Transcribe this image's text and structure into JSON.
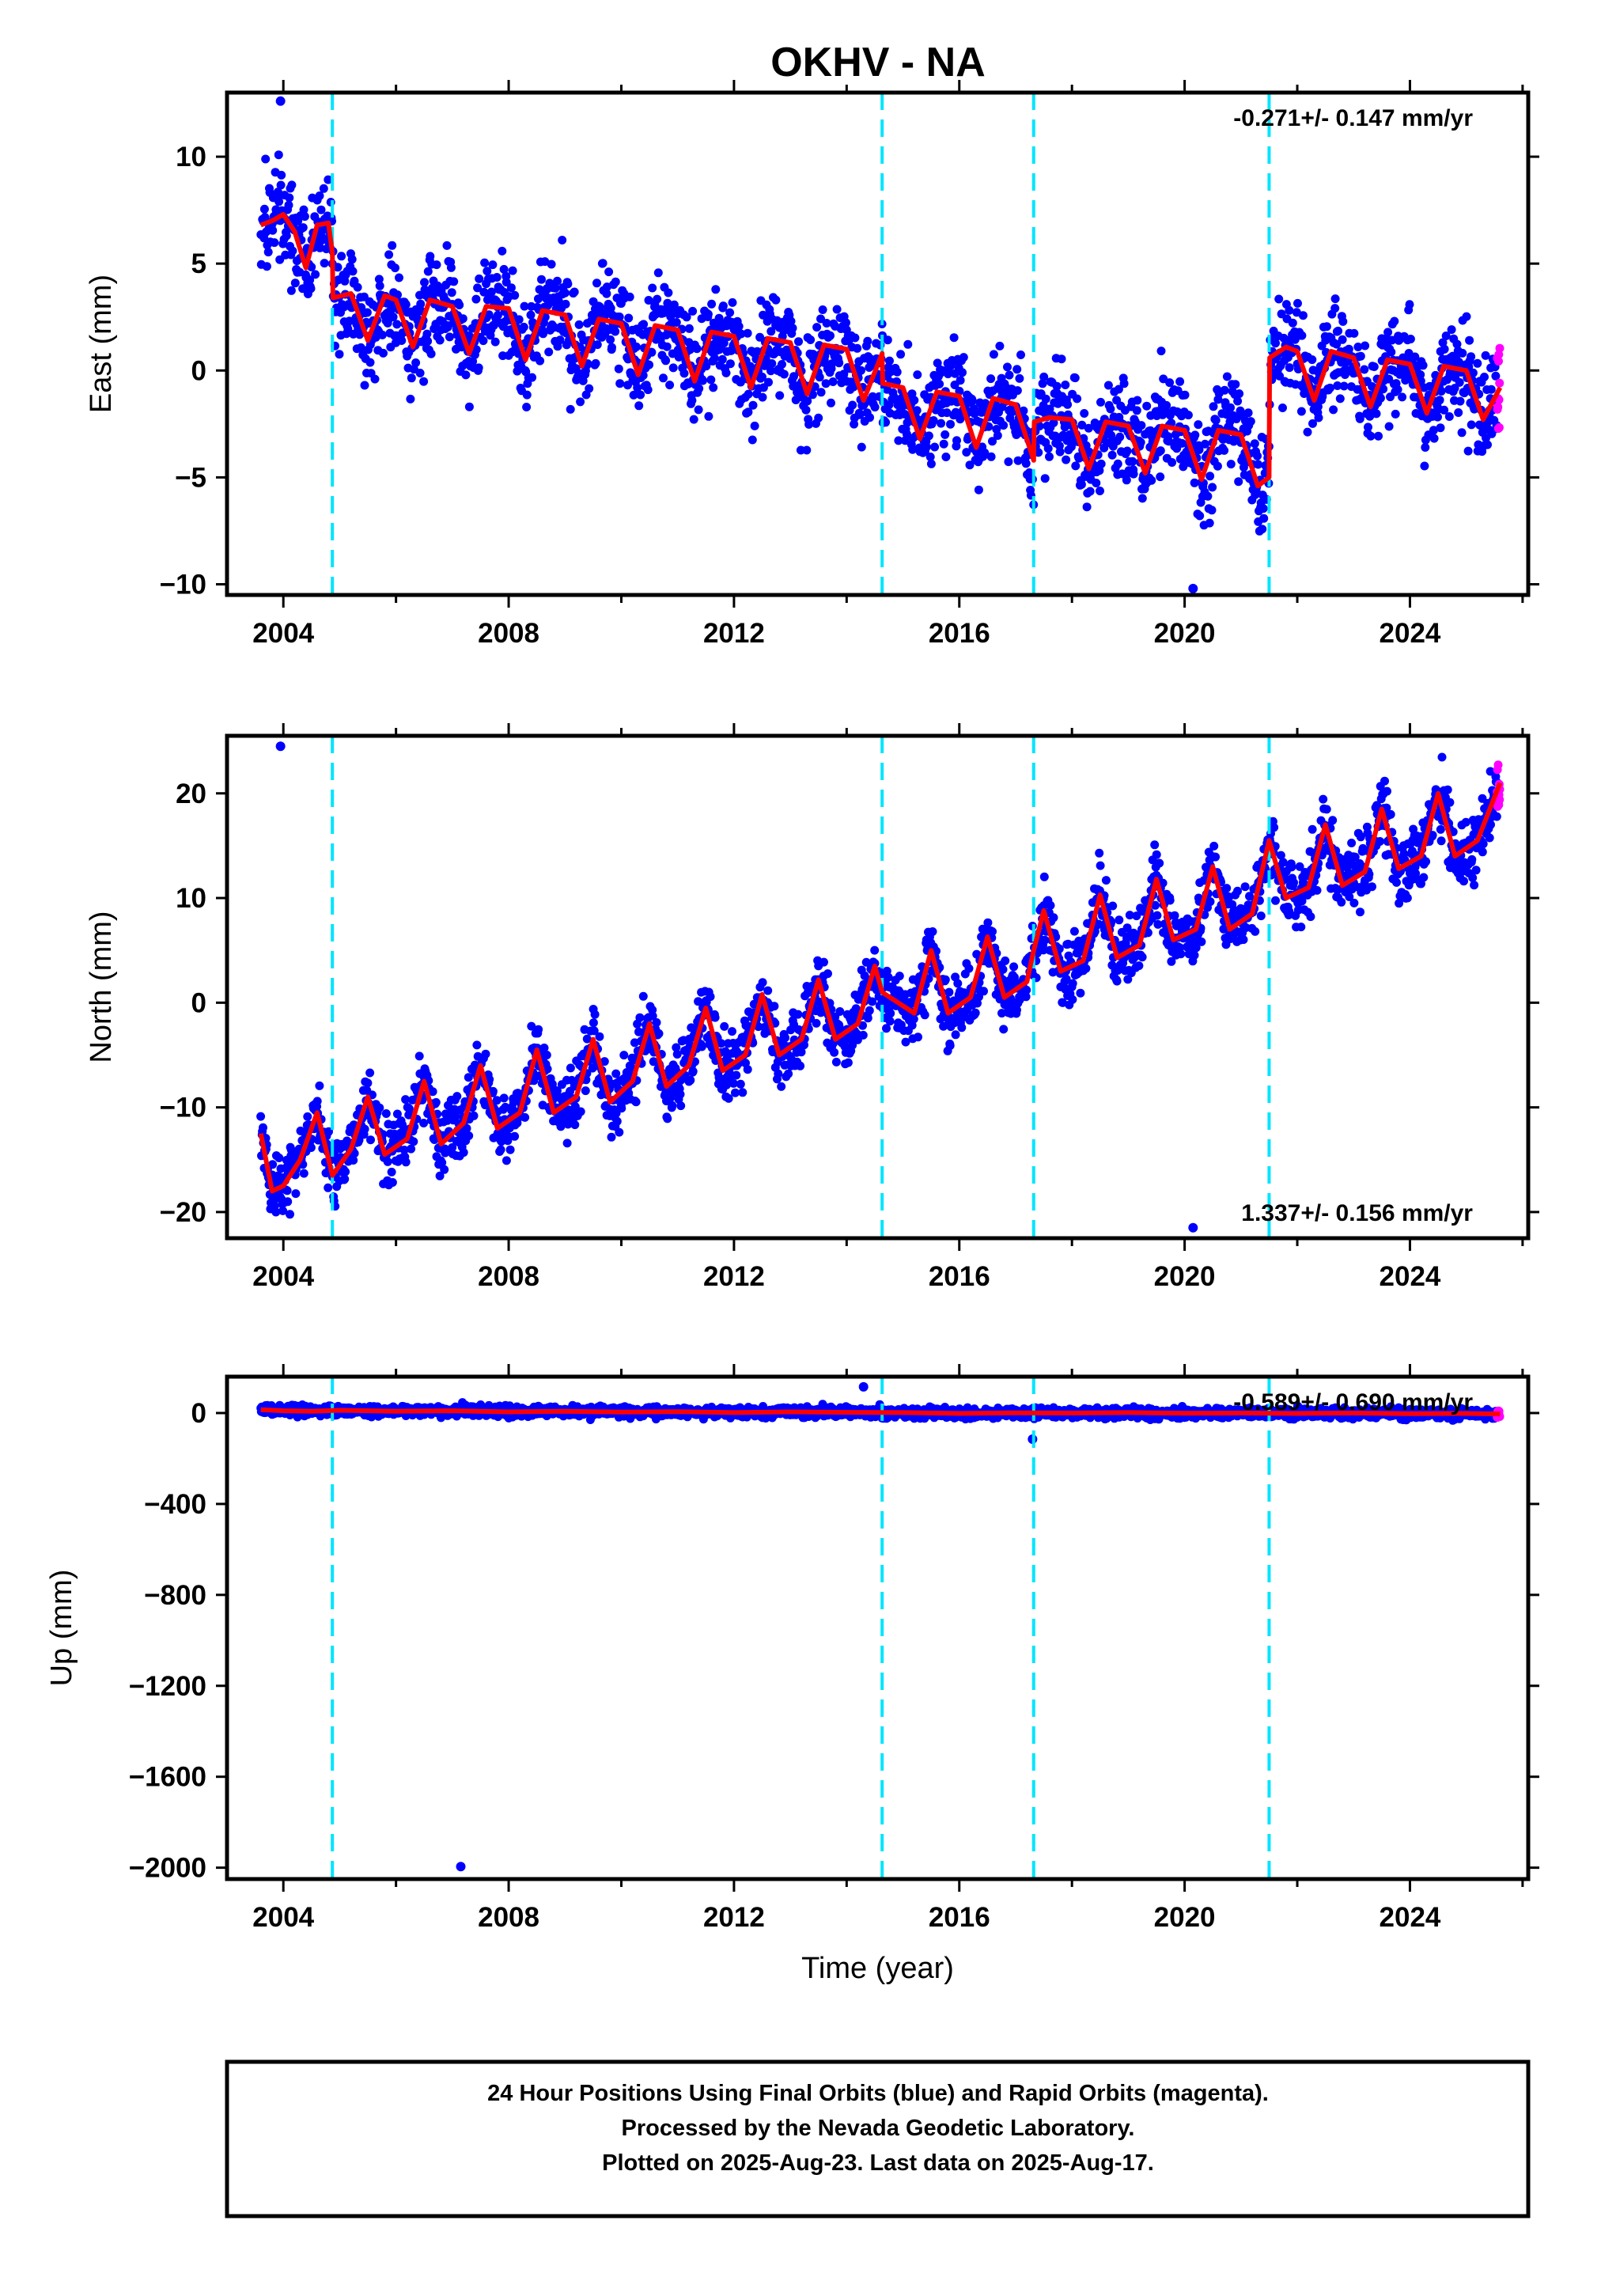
{
  "title": "OKHV - NA",
  "colors": {
    "final_orbits": "#0000ff",
    "rapid_orbits": "#ff00ff",
    "model_fit": "#ff0000",
    "equipment_change": "#00e5ff"
  },
  "footer": {
    "line1": "24 Hour Positions Using Final Orbits (blue) and Rapid Orbits (magenta).",
    "line2": "Processed by the Nevada Geodetic Laboratory.",
    "line3": "Plotted on 2025-Aug-23. Last data on 2025-Aug-17."
  },
  "chart_data": [
    {
      "type": "scatter",
      "name": "east",
      "ylabel": "East (mm)",
      "xlabel": "",
      "xlim": [
        2003.0,
        2026.1
      ],
      "ylim": [
        -10.5,
        13.0
      ],
      "xticks": [
        2004,
        2008,
        2012,
        2016,
        2020,
        2024
      ],
      "xticklabels": [
        "2004",
        "2008",
        "2012",
        "2016",
        "2020",
        "2024"
      ],
      "yticks": [
        -10,
        -5,
        0,
        5,
        10
      ],
      "yticklabels": [
        "−10",
        "−5",
        "0",
        "5",
        "10"
      ],
      "rate_text": "-0.271+/- 0.147 mm/yr",
      "rate_position": "top-right",
      "vlines": [
        2004.87,
        2014.63,
        2017.32,
        2021.5
      ],
      "model_fit": {
        "x": [
          2003.6,
          2003.8,
          2004.0,
          2004.2,
          2004.4,
          2004.6,
          2004.8,
          2004.87,
          2004.88,
          2005.2,
          2005.5,
          2005.8,
          2006.0,
          2006.3,
          2006.6,
          2007.0,
          2007.3,
          2007.6,
          2008.0,
          2008.3,
          2008.6,
          2009.0,
          2009.3,
          2009.6,
          2010.0,
          2010.3,
          2010.6,
          2011.0,
          2011.3,
          2011.6,
          2012.0,
          2012.3,
          2012.6,
          2013.0,
          2013.3,
          2013.6,
          2014.0,
          2014.3,
          2014.63,
          2014.64,
          2015.0,
          2015.3,
          2015.6,
          2016.0,
          2016.3,
          2016.6,
          2017.0,
          2017.32,
          2017.33,
          2017.6,
          2018.0,
          2018.3,
          2018.6,
          2019.0,
          2019.3,
          2019.6,
          2020.0,
          2020.3,
          2020.6,
          2021.0,
          2021.3,
          2021.5,
          2021.51,
          2021.8,
          2022.0,
          2022.3,
          2022.6,
          2023.0,
          2023.3,
          2023.6,
          2024.0,
          2024.3,
          2024.6,
          2025.0,
          2025.3,
          2025.6
        ],
        "y": [
          6.8,
          7.0,
          7.3,
          6.5,
          4.8,
          6.8,
          6.9,
          5.5,
          3.4,
          3.6,
          1.4,
          3.5,
          3.3,
          1.1,
          3.3,
          3.0,
          0.8,
          3.0,
          2.9,
          0.5,
          2.8,
          2.6,
          0.2,
          2.4,
          2.2,
          -0.2,
          2.1,
          1.9,
          -0.5,
          1.8,
          1.6,
          -0.8,
          1.5,
          1.3,
          -1.1,
          1.2,
          1.0,
          -1.4,
          0.8,
          -0.6,
          -0.8,
          -3.2,
          -1.0,
          -1.2,
          -3.6,
          -1.3,
          -1.6,
          -4.2,
          -2.4,
          -2.2,
          -2.3,
          -4.6,
          -2.4,
          -2.6,
          -4.8,
          -2.6,
          -2.8,
          -5.1,
          -2.8,
          -3.0,
          -5.4,
          -5.0,
          0.6,
          1.1,
          0.9,
          -1.4,
          0.9,
          0.6,
          -1.7,
          0.5,
          0.3,
          -2.0,
          0.2,
          0.0,
          -2.3,
          -0.8
        ]
      },
      "scatter_params": {
        "noise": 1.5,
        "outlier_extremes": [
          12.6,
          -10.2
        ]
      }
    },
    {
      "type": "scatter",
      "name": "north",
      "ylabel": "North (mm)",
      "xlabel": "",
      "xlim": [
        2003.0,
        2026.1
      ],
      "ylim": [
        -22.5,
        25.5
      ],
      "xticks": [
        2004,
        2008,
        2012,
        2016,
        2020,
        2024
      ],
      "xticklabels": [
        "2004",
        "2008",
        "2012",
        "2016",
        "2020",
        "2024"
      ],
      "yticks": [
        -20,
        -10,
        0,
        10,
        20
      ],
      "yticklabels": [
        "−20",
        "−10",
        "0",
        "10",
        "20"
      ],
      "rate_text": "1.337+/- 0.156 mm/yr",
      "rate_position": "bottom-right",
      "vlines": [
        2004.87,
        2014.63,
        2017.32,
        2021.5
      ],
      "model_fit": {
        "x": [
          2003.6,
          2003.8,
          2004.0,
          2004.3,
          2004.6,
          2004.87,
          2005.2,
          2005.5,
          2005.8,
          2006.2,
          2006.5,
          2006.8,
          2007.2,
          2007.5,
          2007.8,
          2008.2,
          2008.5,
          2008.8,
          2009.2,
          2009.5,
          2009.8,
          2010.2,
          2010.5,
          2010.8,
          2011.2,
          2011.5,
          2011.8,
          2012.2,
          2012.5,
          2012.8,
          2013.2,
          2013.5,
          2013.8,
          2014.2,
          2014.5,
          2014.63,
          2015.2,
          2015.5,
          2015.8,
          2016.2,
          2016.5,
          2016.8,
          2017.2,
          2017.32,
          2017.5,
          2017.8,
          2018.2,
          2018.5,
          2018.8,
          2019.2,
          2019.5,
          2019.8,
          2020.2,
          2020.5,
          2020.8,
          2021.2,
          2021.5,
          2021.8,
          2022.2,
          2022.5,
          2022.8,
          2023.2,
          2023.5,
          2023.8,
          2024.2,
          2024.5,
          2024.8,
          2025.2,
          2025.6
        ],
        "y": [
          -12.5,
          -18.0,
          -17.5,
          -15.0,
          -10.5,
          -16.5,
          -14.0,
          -9.0,
          -14.5,
          -13.0,
          -7.5,
          -13.5,
          -11.5,
          -6.0,
          -12.0,
          -10.5,
          -4.5,
          -10.5,
          -9.0,
          -3.5,
          -9.5,
          -7.5,
          -2.0,
          -8.0,
          -6.0,
          -0.5,
          -6.5,
          -5.0,
          0.8,
          -5.0,
          -3.5,
          2.2,
          -3.5,
          -2.0,
          3.5,
          1.0,
          -1.0,
          5.0,
          -1.0,
          0.5,
          6.3,
          0.5,
          2.0,
          5.0,
          8.8,
          3.0,
          4.0,
          10.3,
          4.3,
          5.5,
          11.8,
          6.0,
          7.0,
          13.0,
          7.0,
          8.5,
          15.5,
          10.0,
          11.0,
          17.0,
          11.2,
          12.5,
          18.5,
          12.8,
          14.0,
          20.0,
          14.0,
          15.5,
          21.0
        ]
      },
      "scatter_params": {
        "noise": 2.0,
        "outlier_extremes": [
          24.5,
          -21.5
        ]
      }
    },
    {
      "type": "scatter",
      "name": "up",
      "ylabel": "Up (mm)",
      "xlabel": "Time (year)",
      "xlim": [
        2003.0,
        2026.1
      ],
      "ylim": [
        -2050,
        160
      ],
      "xticks": [
        2004,
        2008,
        2012,
        2016,
        2020,
        2024
      ],
      "xticklabels": [
        "2004",
        "2008",
        "2012",
        "2016",
        "2020",
        "2024"
      ],
      "yticks": [
        -2000,
        -1600,
        -1200,
        -800,
        -400,
        0
      ],
      "yticklabels": [
        "−2000",
        "−1600",
        "−1200",
        "−800",
        "−400",
        "0"
      ],
      "rate_text": "-0.589+/- 0.690 mm/yr",
      "rate_position": "top-right",
      "vlines": [
        2004.87,
        2014.63,
        2017.32,
        2021.5
      ],
      "model_fit": {
        "x": [
          2003.6,
          2004.0,
          2004.5,
          2005.0,
          2006.0,
          2007.0,
          2008.0,
          2009.0,
          2010.0,
          2011.0,
          2012.0,
          2013.0,
          2014.0,
          2015.0,
          2016.0,
          2017.0,
          2018.0,
          2019.0,
          2020.0,
          2021.0,
          2022.0,
          2023.0,
          2024.0,
          2025.0,
          2025.6
        ],
        "y": [
          15,
          10,
          8,
          12,
          8,
          10,
          5,
          8,
          4,
          6,
          2,
          5,
          3,
          2,
          -2,
          1,
          0,
          2,
          -1,
          0,
          -2,
          0,
          -3,
          -2,
          -4
        ]
      },
      "outliers": [
        {
          "x": 2007.15,
          "y": -1995
        },
        {
          "x": 2014.3,
          "y": 115
        },
        {
          "x": 2017.3,
          "y": -115
        }
      ],
      "scatter_params": {
        "noise": 15
      }
    }
  ]
}
